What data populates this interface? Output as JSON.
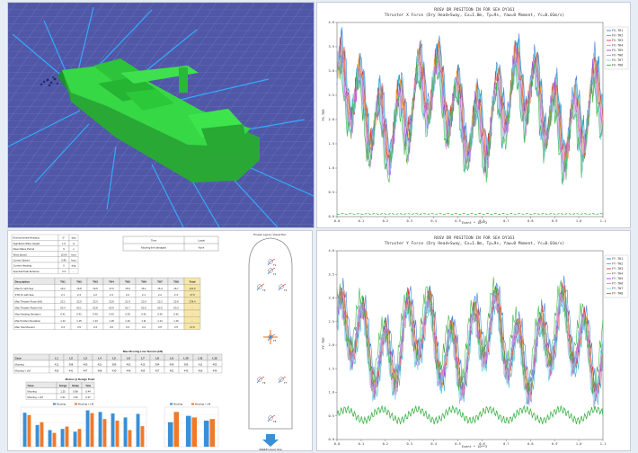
{
  "viewer3d": {
    "background": "#5057a6",
    "vessel_color": "#2fd03a",
    "mooring_line_color": "#33aaff",
    "icon": "ship-3d-model"
  },
  "time_series": [
    {
      "title_main": "ROSV DR POSITION IN FOR SEA DY161",
      "title_sub": "Thruster X Force (Dry Head+Sway, Ex=1.0m, Tp=9s, Yaw=0 Moment, Yc=0.01m/s)",
      "xlabel": "Event * 10**3",
      "ylabel": "FX-THR",
      "x_ticks": [
        "0.0",
        "0.1",
        "0.2",
        "0.3",
        "0.4",
        "0.5",
        "0.6",
        "0.7",
        "0.8",
        "0.9",
        "1.0",
        "1.1"
      ],
      "y_ticks": [
        "0.0",
        "0.5",
        "1.0",
        "1.5",
        "2.0",
        "2.5",
        "3.0",
        "3.5",
        "4.0"
      ],
      "legend": [
        "FX-TH1",
        "FX-TH2",
        "FX-TH3",
        "FX-TH4",
        "FX-TH5",
        "FX-TH6",
        "FX-TH7",
        "FX-TH8"
      ]
    },
    {
      "title_main": "ROSV DR POSITION IN FOR SEA DY161",
      "title_sub": "Thruster Y Force (Dry Head+Sway, Ex=1.0m, Tp=9s, Yaw=0 Moment, Yc=0.01m/s)",
      "xlabel": "Event * 10**3",
      "ylabel": "FY-THR",
      "x_ticks": [
        "0.0",
        "0.1",
        "0.2",
        "0.3",
        "0.4",
        "0.5",
        "0.6",
        "0.7",
        "0.8",
        "0.9",
        "1.0",
        "1.1"
      ],
      "y_ticks": [
        "0.0",
        "0.5",
        "1.0",
        "1.5",
        "2.0",
        "2.5",
        "3.0",
        "3.5",
        "4.0"
      ],
      "legend": [
        "FY-TH1",
        "FY-TH2",
        "FY-TH3",
        "FY-TH4",
        "FY-TH5",
        "FY-TH6",
        "FY-TH7",
        "FY-TH8"
      ]
    }
  ],
  "series_colors": [
    "#3a7fd6",
    "#44b7c9",
    "#d93a3a",
    "#e8a43a",
    "#9a4ad6",
    "#d68acb",
    "#79cfe8",
    "#3fb34a"
  ],
  "report": {
    "params": [
      [
        "Environmental Heading",
        "0°",
        "deg"
      ],
      [
        "Significant Wave Height",
        "1.0",
        "m"
      ],
      [
        "Mean Wave Period",
        "9",
        "s"
      ],
      [
        "Wind Speed",
        "15.00",
        "knot"
      ],
      [
        "Current Speed",
        "0.80",
        "knot"
      ],
      [
        "Current Heading",
        "0",
        "deg"
      ],
      [
        "Spectral Peak Enhance",
        "3.3",
        "-"
      ]
    ],
    "small_table_header": [
      "Time",
      "Loads"
    ],
    "small_table_row": [
      "Mooring line damaged",
      "None"
    ],
    "load_table_header": [
      "Description",
      "TH1",
      "TH2",
      "TH3",
      "TH4",
      "TH5",
      "TH6",
      "TH7",
      "TH8",
      "Total"
    ],
    "load_table_rows": [
      [
        "Max Fx with Sea",
        "16.2",
        "16.8",
        "16.5",
        "17.0",
        "15.9",
        "16.1",
        "16.4",
        "16.7",
        "131.6"
      ],
      [
        "STD Fx with Sea",
        "2.1",
        "2.3",
        "2.2",
        "2.4",
        "2.0",
        "2.1",
        "2.2",
        "2.3",
        "17.6"
      ],
      [
        "Max Thruster Force (kN)",
        "22.1",
        "22.5",
        "22.3",
        "22.8",
        "21.9",
        "22.0",
        "22.2",
        "22.6",
        "178.4"
      ],
      [
        "Max Thruster Power (%)",
        "62.4",
        "63.1",
        "62.8",
        "63.9",
        "61.7",
        "62.0",
        "62.5",
        "63.3",
        "-"
      ],
      [
        "Max Heading Deviation",
        "0.41",
        "0.42",
        "0.40",
        "0.43",
        "0.39",
        "0.41",
        "0.40",
        "0.42",
        "-"
      ],
      [
        "Max Position Deviation",
        "1.12",
        "1.15",
        "1.13",
        "1.18",
        "1.10",
        "1.11",
        "1.14",
        "1.16",
        "-"
      ],
      [
        "Max Yaw Moment",
        "3.4",
        "3.5",
        "3.4",
        "3.6",
        "3.3",
        "3.4",
        "3.5",
        "3.5",
        "27.6"
      ]
    ],
    "mooring_caption": "Max Mooring Line Tension (kN)",
    "mooring_header": [
      "Case",
      "L1",
      "L2",
      "L3",
      "L4",
      "L5",
      "L6",
      "L7",
      "L8",
      "L9",
      "L10",
      "L11",
      "L12"
    ],
    "mooring_rows": [
      [
        "Mooring",
        "412",
        "398",
        "405",
        "421",
        "389",
        "402",
        "415",
        "394",
        "408",
        "399",
        "411",
        "403"
      ],
      [
        "Mooring + LM",
        "455",
        "441",
        "447",
        "468",
        "430",
        "446",
        "459",
        "437",
        "452",
        "443",
        "456",
        "449"
      ]
    ],
    "stats_caption": "Motion @ Design Point",
    "stats_header": [
      "Case",
      "Surge",
      "Sway",
      "Yaw"
    ],
    "stats_rows": [
      [
        "Mooring",
        "1.25",
        "0.98",
        "0.44"
      ],
      [
        "Mooring + LM",
        "1.31",
        "1.02",
        "0.47"
      ]
    ],
    "bar_legend": [
      "Mooring",
      "Mooring + LM"
    ],
    "bar_colors": [
      "#3a8fd6",
      "#f07a2a"
    ],
    "bar_values_a": [
      0.86,
      0.55,
      0.42,
      0.45,
      0.38,
      0.92,
      0.88,
      0.84,
      0.74,
      0.83
    ],
    "bar_values_b": [
      0.8,
      0.62,
      0.35,
      0.51,
      0.45,
      0.85,
      0.7,
      0.66,
      0.42,
      0.52
    ],
    "bar_values_c": [
      0.62,
      0.78,
      0.66
    ],
    "bar_values_d": [
      0.88,
      0.74,
      0.7
    ],
    "layout_title": "Thruster Layout / Vessel Plan",
    "layout_caption": "SHEEP Layout View",
    "thruster_labels": [
      "T1",
      "T2",
      "T3",
      "T4",
      "T5",
      "T6",
      "T7",
      "T8"
    ]
  }
}
